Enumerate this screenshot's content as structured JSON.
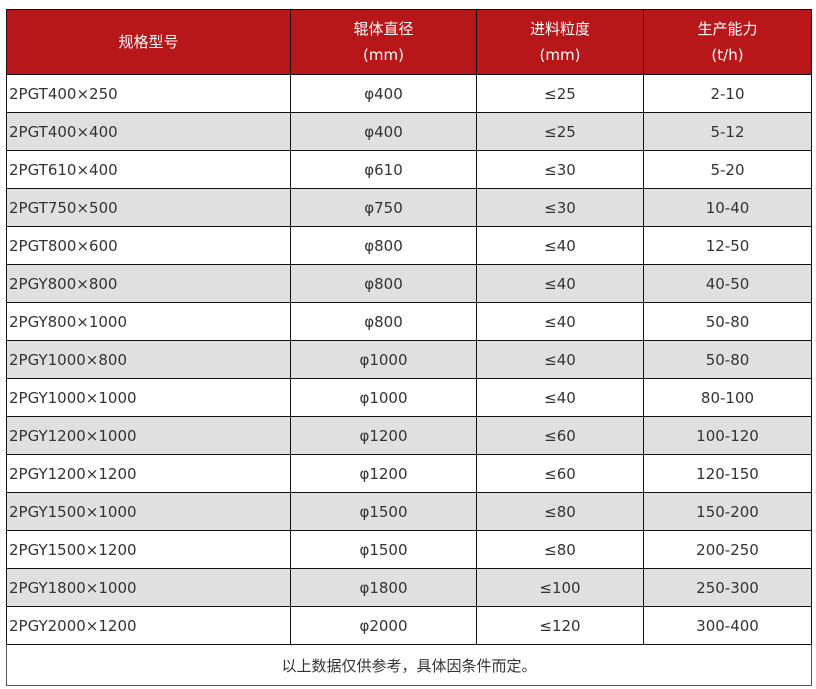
{
  "header_color": "#b8171a",
  "headers": [
    {
      "l1": "规格型号",
      "l2": ""
    },
    {
      "l1": "辊体直径",
      "l2": "(mm)"
    },
    {
      "l1": "进料粒度",
      "l2": "(mm)"
    },
    {
      "l1": "生产能力",
      "l2": "(t/h)"
    }
  ],
  "rows": [
    [
      "2PGT400×250",
      "φ400",
      "≤25",
      "2-10"
    ],
    [
      "2PGT400×400",
      "φ400",
      "≤25",
      "5-12"
    ],
    [
      "2PGT610×400",
      "φ610",
      "≤30",
      "5-20"
    ],
    [
      "2PGT750×500",
      "φ750",
      "≤30",
      "10-40"
    ],
    [
      "2PGT800×600",
      "φ800",
      "≤40",
      "12-50"
    ],
    [
      "2PGY800×800",
      "φ800",
      "≤40",
      "40-50"
    ],
    [
      "2PGY800×1000",
      "φ800",
      "≤40",
      "50-80"
    ],
    [
      "2PGY1000×800",
      "φ1000",
      "≤40",
      "50-80"
    ],
    [
      "2PGY1000×1000",
      "φ1000",
      "≤40",
      "80-100"
    ],
    [
      "2PGY1200×1000",
      "φ1200",
      "≤60",
      "100-120"
    ],
    [
      "2PGY1200×1200",
      "φ1200",
      "≤60",
      "120-150"
    ],
    [
      "2PGY1500×1000",
      "φ1500",
      "≤80",
      "150-200"
    ],
    [
      "2PGY1500×1200",
      "φ1500",
      "≤80",
      "200-250"
    ],
    [
      "2PGY1800×1000",
      "φ1800",
      "≤100",
      "250-300"
    ],
    [
      "2PGY2000×1200",
      "φ2000",
      "≤120",
      "300-400"
    ]
  ],
  "footer": "以上数据仅供参考，具体因条件而定。"
}
